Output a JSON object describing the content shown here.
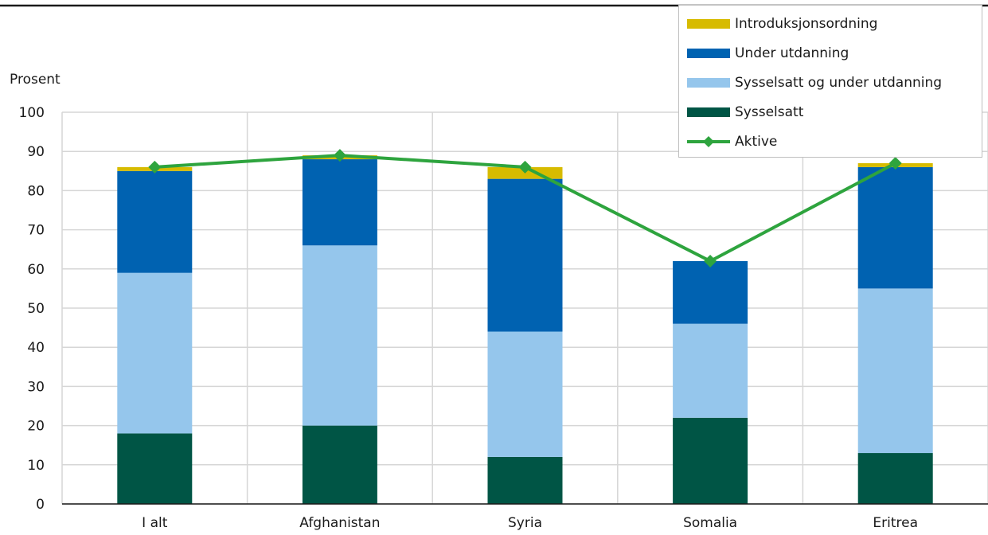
{
  "chart_data": {
    "type": "bar",
    "stacked": true,
    "ylabel": "Prosent",
    "ylim": [
      0,
      100
    ],
    "yticks": [
      0,
      10,
      20,
      30,
      40,
      50,
      60,
      70,
      80,
      90,
      100
    ],
    "grid": true,
    "legend_position": "top-right",
    "categories": [
      "I alt",
      "Afghanistan",
      "Syria",
      "Somalia",
      "Eritrea"
    ],
    "series": [
      {
        "name": "Sysselsatt",
        "kind": "bar",
        "color": "#005545",
        "values": [
          18,
          20,
          12,
          22,
          13
        ]
      },
      {
        "name": "Sysselsatt og under utdanning",
        "kind": "bar",
        "color": "#95c6ec",
        "values": [
          41,
          46,
          32,
          24,
          42
        ]
      },
      {
        "name": "Under utdanning",
        "kind": "bar",
        "color": "#0062b1",
        "values": [
          26,
          22,
          39,
          16,
          31
        ]
      },
      {
        "name": "Introduksjonsordning",
        "kind": "bar",
        "color": "#d7bb00",
        "values": [
          1,
          1,
          3,
          0,
          1
        ]
      },
      {
        "name": "Aktive",
        "kind": "line",
        "color": "#2ea43e",
        "values": [
          86,
          89,
          86,
          62,
          87
        ]
      }
    ],
    "legend_order": [
      "Introduksjonsordning",
      "Under utdanning",
      "Sysselsatt og under utdanning",
      "Sysselsatt",
      "Aktive"
    ]
  }
}
